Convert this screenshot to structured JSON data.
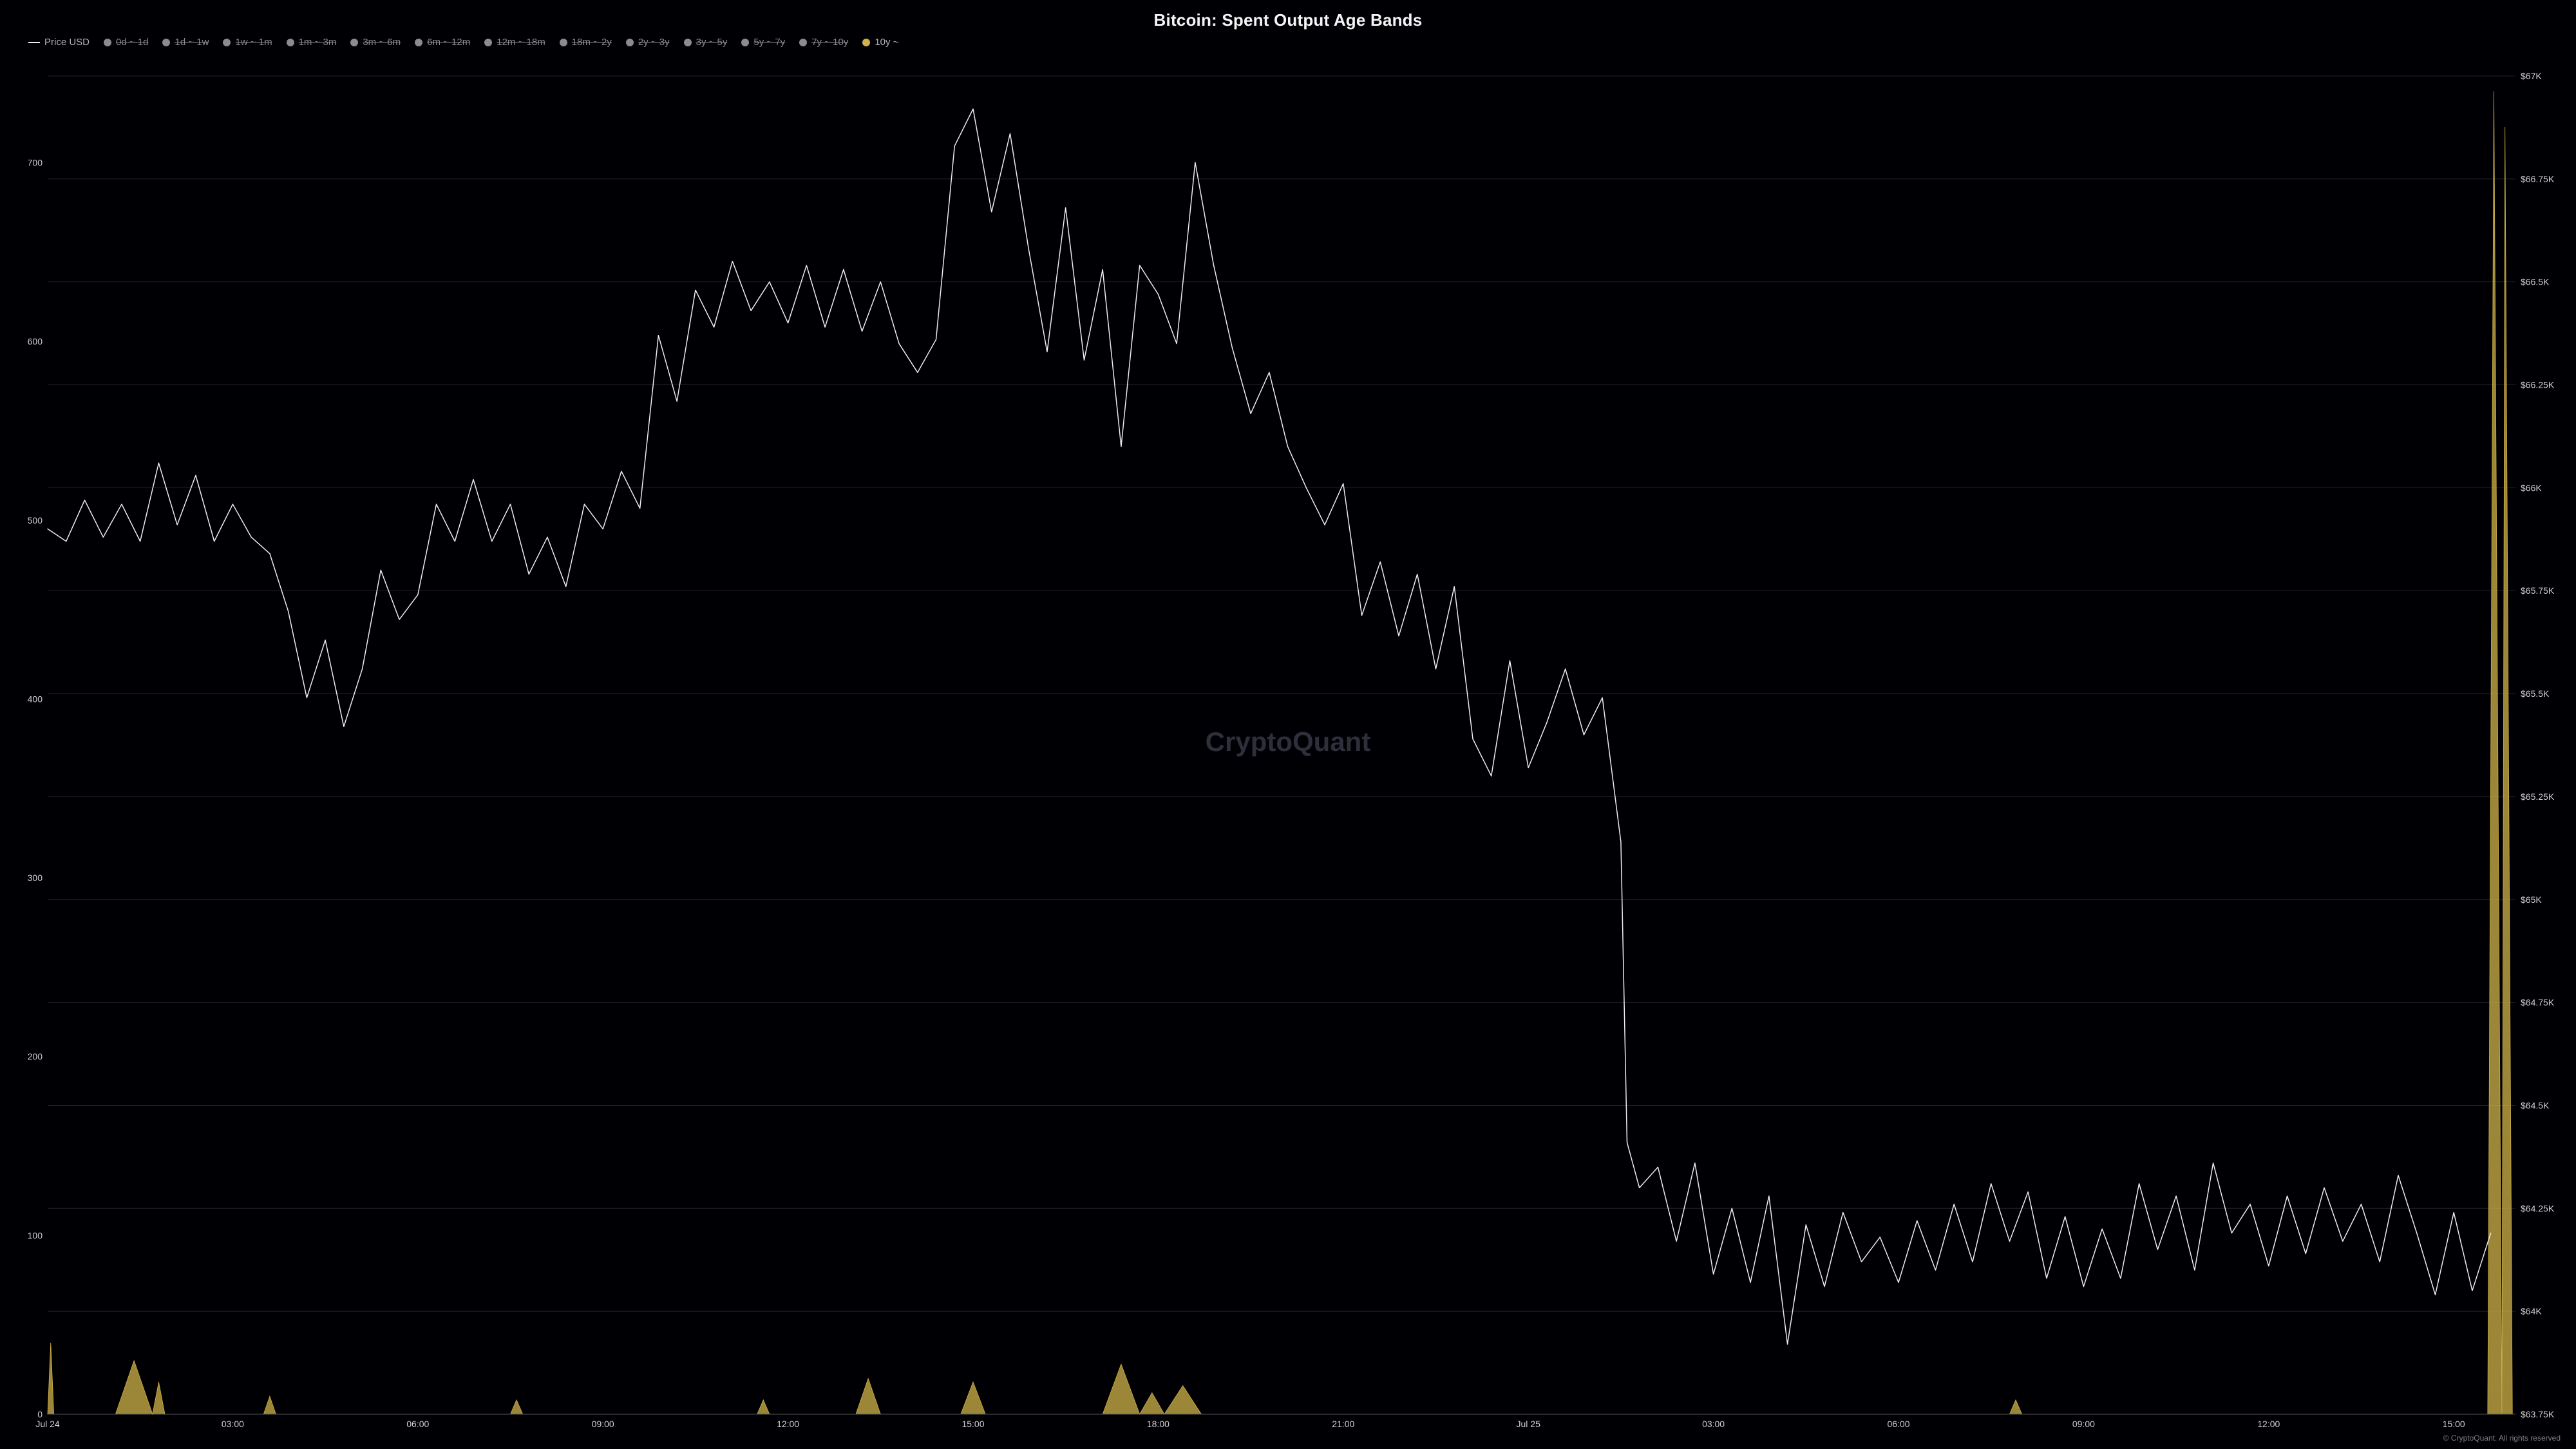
{
  "title": "Bitcoin: Spent Output Age Bands",
  "title_fontsize": 26,
  "watermark": "CryptoQuant",
  "watermark_fontsize": 42,
  "footer": "© CryptoQuant. All rights reserved",
  "colors": {
    "bg": "#000004",
    "grid": "#232323",
    "axis_text": "#cfcfcf",
    "price": "#ececec",
    "tenY": "#d0b348",
    "disabled_dot": "#8c8c8c",
    "watermark": "#2d2f3a"
  },
  "legend": [
    {
      "key": "price",
      "label": "Price USD",
      "type": "line",
      "color": "#ececec",
      "enabled": true
    },
    {
      "key": "b0",
      "label": "0d ~ 1d",
      "type": "dot",
      "color": "#8c8c8c",
      "enabled": false
    },
    {
      "key": "b1",
      "label": "1d ~ 1w",
      "type": "dot",
      "color": "#8c8c8c",
      "enabled": false
    },
    {
      "key": "b2",
      "label": "1w ~ 1m",
      "type": "dot",
      "color": "#8c8c8c",
      "enabled": false
    },
    {
      "key": "b3",
      "label": "1m ~ 3m",
      "type": "dot",
      "color": "#8c8c8c",
      "enabled": false
    },
    {
      "key": "b4",
      "label": "3m ~ 6m",
      "type": "dot",
      "color": "#8c8c8c",
      "enabled": false
    },
    {
      "key": "b5",
      "label": "6m ~ 12m",
      "type": "dot",
      "color": "#8c8c8c",
      "enabled": false
    },
    {
      "key": "b6",
      "label": "12m ~ 18m",
      "type": "dot",
      "color": "#8c8c8c",
      "enabled": false
    },
    {
      "key": "b7",
      "label": "18m ~ 2y",
      "type": "dot",
      "color": "#8c8c8c",
      "enabled": false
    },
    {
      "key": "b8",
      "label": "2y ~ 3y",
      "type": "dot",
      "color": "#8c8c8c",
      "enabled": false
    },
    {
      "key": "b9",
      "label": "3y ~ 5y",
      "type": "dot",
      "color": "#8c8c8c",
      "enabled": false
    },
    {
      "key": "b10",
      "label": "5y ~ 7y",
      "type": "dot",
      "color": "#8c8c8c",
      "enabled": false
    },
    {
      "key": "b11",
      "label": "7y ~ 10y",
      "type": "dot",
      "color": "#8c8c8c",
      "enabled": false
    },
    {
      "key": "b12",
      "label": "10y ~",
      "type": "dot",
      "color": "#d0b348",
      "enabled": true
    }
  ],
  "chart": {
    "type": "line+area",
    "x_range": [
      0,
      40
    ],
    "x_ticks": [
      0,
      3,
      6,
      9,
      12,
      15,
      18,
      21,
      24,
      27,
      30,
      33,
      36,
      39
    ],
    "x_labels": [
      "Jul 24",
      "03:00",
      "06:00",
      "09:00",
      "12:00",
      "15:00",
      "18:00",
      "21:00",
      "Jul 25",
      "03:00",
      "06:00",
      "09:00",
      "12:00",
      "15:00"
    ],
    "yL_range": [
      0,
      760
    ],
    "yL_ticks": [
      0,
      100,
      200,
      300,
      400,
      500,
      600,
      700
    ],
    "yL_labels": [
      "0",
      "100",
      "200",
      "300",
      "400",
      "500",
      "600",
      "700"
    ],
    "yR_range": [
      63750,
      67050
    ],
    "yR_ticks": [
      63750,
      64000,
      64250,
      64500,
      64750,
      65000,
      65250,
      65500,
      65750,
      66000,
      66250,
      66500,
      66750,
      67000
    ],
    "yR_labels": [
      "$63.75K",
      "$64K",
      "$64.25K",
      "$64.5K",
      "$64.75K",
      "$65K",
      "$65.25K",
      "$65.5K",
      "$65.75K",
      "$66K",
      "$66.25K",
      "$66.5K",
      "$66.75K",
      "$67K"
    ],
    "line_width": 1.5,
    "series_price": {
      "axis": "right",
      "color": "#ececec",
      "points": [
        [
          0.0,
          65900
        ],
        [
          0.3,
          65870
        ],
        [
          0.6,
          65970
        ],
        [
          0.9,
          65880
        ],
        [
          1.2,
          65960
        ],
        [
          1.5,
          65870
        ],
        [
          1.8,
          66060
        ],
        [
          2.1,
          65910
        ],
        [
          2.4,
          66030
        ],
        [
          2.7,
          65870
        ],
        [
          3.0,
          65960
        ],
        [
          3.3,
          65880
        ],
        [
          3.6,
          65840
        ],
        [
          3.9,
          65700
        ],
        [
          4.2,
          65490
        ],
        [
          4.5,
          65630
        ],
        [
          4.8,
          65420
        ],
        [
          5.1,
          65560
        ],
        [
          5.4,
          65800
        ],
        [
          5.7,
          65680
        ],
        [
          6.0,
          65740
        ],
        [
          6.3,
          65960
        ],
        [
          6.6,
          65870
        ],
        [
          6.9,
          66020
        ],
        [
          7.2,
          65870
        ],
        [
          7.5,
          65960
        ],
        [
          7.8,
          65790
        ],
        [
          8.1,
          65880
        ],
        [
          8.4,
          65760
        ],
        [
          8.7,
          65960
        ],
        [
          9.0,
          65900
        ],
        [
          9.3,
          66040
        ],
        [
          9.6,
          65950
        ],
        [
          9.9,
          66370
        ],
        [
          10.2,
          66210
        ],
        [
          10.5,
          66480
        ],
        [
          10.8,
          66390
        ],
        [
          11.1,
          66550
        ],
        [
          11.4,
          66430
        ],
        [
          11.7,
          66500
        ],
        [
          12.0,
          66400
        ],
        [
          12.3,
          66540
        ],
        [
          12.6,
          66390
        ],
        [
          12.9,
          66530
        ],
        [
          13.2,
          66380
        ],
        [
          13.5,
          66500
        ],
        [
          13.8,
          66350
        ],
        [
          14.1,
          66280
        ],
        [
          14.4,
          66360
        ],
        [
          14.7,
          66830
        ],
        [
          15.0,
          66920
        ],
        [
          15.3,
          66670
        ],
        [
          15.6,
          66860
        ],
        [
          15.9,
          66580
        ],
        [
          16.2,
          66330
        ],
        [
          16.5,
          66680
        ],
        [
          16.8,
          66310
        ],
        [
          17.1,
          66530
        ],
        [
          17.4,
          66100
        ],
        [
          17.7,
          66540
        ],
        [
          18.0,
          66470
        ],
        [
          18.3,
          66350
        ],
        [
          18.6,
          66790
        ],
        [
          18.9,
          66540
        ],
        [
          19.2,
          66340
        ],
        [
          19.5,
          66180
        ],
        [
          19.8,
          66280
        ],
        [
          20.1,
          66100
        ],
        [
          20.4,
          66000
        ],
        [
          20.7,
          65910
        ],
        [
          21.0,
          66010
        ],
        [
          21.3,
          65690
        ],
        [
          21.6,
          65820
        ],
        [
          21.9,
          65640
        ],
        [
          22.2,
          65790
        ],
        [
          22.5,
          65560
        ],
        [
          22.8,
          65760
        ],
        [
          23.1,
          65390
        ],
        [
          23.4,
          65300
        ],
        [
          23.7,
          65580
        ],
        [
          24.0,
          65320
        ],
        [
          24.3,
          65430
        ],
        [
          24.6,
          65560
        ],
        [
          24.9,
          65400
        ],
        [
          25.2,
          65490
        ],
        [
          25.5,
          65140
        ],
        [
          25.6,
          64410
        ],
        [
          25.8,
          64300
        ],
        [
          26.1,
          64350
        ],
        [
          26.4,
          64170
        ],
        [
          26.7,
          64360
        ],
        [
          27.0,
          64090
        ],
        [
          27.3,
          64250
        ],
        [
          27.6,
          64070
        ],
        [
          27.9,
          64280
        ],
        [
          28.2,
          63920
        ],
        [
          28.5,
          64210
        ],
        [
          28.8,
          64060
        ],
        [
          29.1,
          64240
        ],
        [
          29.4,
          64120
        ],
        [
          29.7,
          64180
        ],
        [
          30.0,
          64070
        ],
        [
          30.3,
          64220
        ],
        [
          30.6,
          64100
        ],
        [
          30.9,
          64260
        ],
        [
          31.2,
          64120
        ],
        [
          31.5,
          64310
        ],
        [
          31.8,
          64170
        ],
        [
          32.1,
          64290
        ],
        [
          32.4,
          64080
        ],
        [
          32.7,
          64230
        ],
        [
          33.0,
          64060
        ],
        [
          33.3,
          64200
        ],
        [
          33.6,
          64080
        ],
        [
          33.9,
          64310
        ],
        [
          34.2,
          64150
        ],
        [
          34.5,
          64280
        ],
        [
          34.8,
          64100
        ],
        [
          35.1,
          64360
        ],
        [
          35.4,
          64190
        ],
        [
          35.7,
          64260
        ],
        [
          36.0,
          64110
        ],
        [
          36.3,
          64280
        ],
        [
          36.6,
          64140
        ],
        [
          36.9,
          64300
        ],
        [
          37.2,
          64170
        ],
        [
          37.5,
          64260
        ],
        [
          37.8,
          64120
        ],
        [
          38.1,
          64330
        ],
        [
          38.4,
          64190
        ],
        [
          38.7,
          64040
        ],
        [
          39.0,
          64240
        ],
        [
          39.3,
          64050
        ],
        [
          39.6,
          64190
        ]
      ]
    },
    "series_10y": {
      "axis": "left",
      "type": "area",
      "color": "#d0b348",
      "fill_opacity": 0.75,
      "points": [
        [
          0.0,
          0
        ],
        [
          0.05,
          40
        ],
        [
          0.1,
          0
        ],
        [
          1.1,
          0
        ],
        [
          1.4,
          30
        ],
        [
          1.7,
          0
        ],
        [
          1.8,
          18
        ],
        [
          1.9,
          0
        ],
        [
          3.5,
          0
        ],
        [
          3.6,
          10
        ],
        [
          3.7,
          0
        ],
        [
          7.5,
          0
        ],
        [
          7.6,
          8
        ],
        [
          7.7,
          0
        ],
        [
          11.5,
          0
        ],
        [
          11.6,
          8
        ],
        [
          11.7,
          0
        ],
        [
          13.1,
          0
        ],
        [
          13.3,
          20
        ],
        [
          13.5,
          0
        ],
        [
          14.8,
          0
        ],
        [
          15.0,
          18
        ],
        [
          15.2,
          0
        ],
        [
          17.1,
          0
        ],
        [
          17.4,
          28
        ],
        [
          17.7,
          0
        ],
        [
          17.9,
          12
        ],
        [
          18.1,
          0
        ],
        [
          18.4,
          16
        ],
        [
          18.7,
          0
        ],
        [
          31.8,
          0
        ],
        [
          31.9,
          8
        ],
        [
          32.0,
          0
        ],
        [
          39.55,
          0
        ],
        [
          39.65,
          740
        ],
        [
          39.78,
          0
        ],
        [
          39.83,
          720
        ],
        [
          39.95,
          0
        ]
      ]
    }
  }
}
